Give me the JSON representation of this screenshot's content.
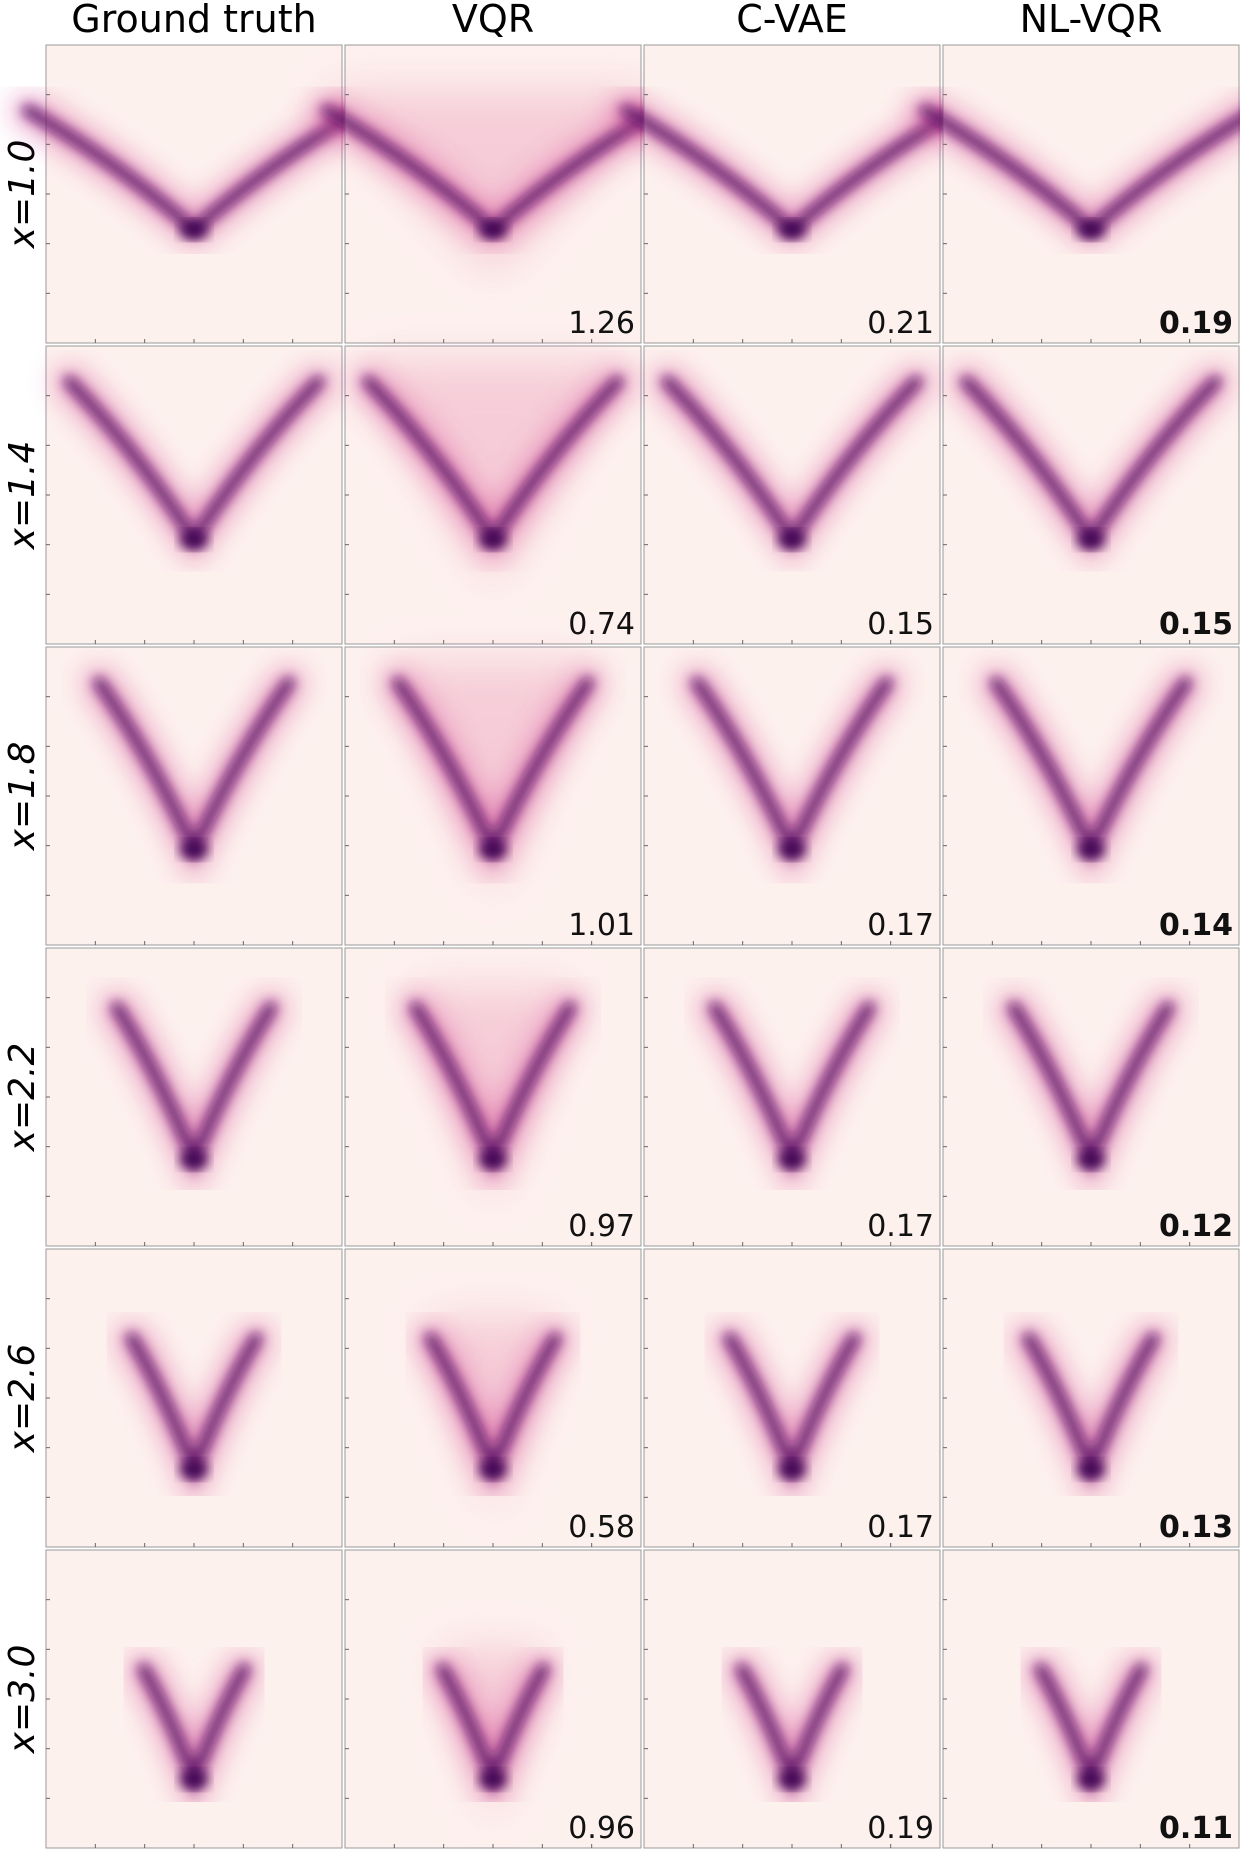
{
  "columns": [
    "Ground truth",
    "VQR",
    "C-VAE",
    "NL-VQR"
  ],
  "rows": [
    {
      "label": "x=1.0",
      "scores": [
        1.26,
        0.21,
        0.19
      ],
      "bold_score": 2
    },
    {
      "label": "x=1.4",
      "scores": [
        0.74,
        0.15,
        0.15
      ],
      "bold_score": 2
    },
    {
      "label": "x=1.8",
      "scores": [
        1.01,
        0.17,
        0.14
      ],
      "bold_score": 2
    },
    {
      "label": "x=2.2",
      "scores": [
        0.97,
        0.17,
        0.12
      ],
      "bold_score": 2
    },
    {
      "label": "x=2.6",
      "scores": [
        0.58,
        0.17,
        0.13
      ],
      "bold_score": 2
    },
    {
      "label": "x=3.0",
      "scores": [
        0.96,
        0.19,
        0.11
      ],
      "bold_score": 2
    }
  ]
}
